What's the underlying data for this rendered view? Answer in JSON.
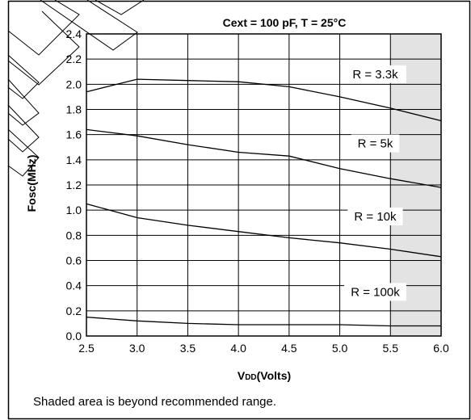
{
  "chart_data": {
    "type": "line",
    "title": "Cext = 100 pF, T = 25°C",
    "xlabel": "VDD(Volts)",
    "xlabel_parts": [
      "V",
      "DD",
      "(Volts)"
    ],
    "ylabel": "Fosc(MHz)",
    "xlim": [
      2.5,
      6.0
    ],
    "ylim": [
      0.0,
      2.4
    ],
    "x_ticks": [
      "2.5",
      "3.0",
      "3.5",
      "4.0",
      "4.5",
      "5.0",
      "5.5",
      "6.0"
    ],
    "y_ticks": [
      "0.0",
      "0.2",
      "0.4",
      "0.6",
      "0.8",
      "1.0",
      "1.2",
      "1.4",
      "1.6",
      "1.8",
      "2.0",
      "2.2",
      "2.4"
    ],
    "grid": true,
    "shaded_region": {
      "x": [
        5.5,
        6.0
      ],
      "color": "#e3e3e3"
    },
    "series": [
      {
        "name": "R = 3.3k",
        "x": [
          2.5,
          3.0,
          3.5,
          4.0,
          4.5,
          5.0,
          5.5,
          6.0
        ],
        "values": [
          1.94,
          2.04,
          2.03,
          2.02,
          1.98,
          1.9,
          1.81,
          1.71
        ]
      },
      {
        "name": "R = 5k",
        "x": [
          2.5,
          3.0,
          3.5,
          4.0,
          4.5,
          5.0,
          5.5,
          6.0
        ],
        "values": [
          1.64,
          1.59,
          1.52,
          1.46,
          1.43,
          1.33,
          1.25,
          1.18
        ]
      },
      {
        "name": "R = 10k",
        "x": [
          2.5,
          3.0,
          3.5,
          4.0,
          4.5,
          5.0,
          5.5,
          6.0
        ],
        "values": [
          1.05,
          0.94,
          0.88,
          0.83,
          0.78,
          0.74,
          0.69,
          0.63
        ]
      },
      {
        "name": "R = 100k",
        "x": [
          2.5,
          3.0,
          3.5,
          4.0,
          4.5,
          5.0,
          5.5,
          6.0
        ],
        "values": [
          0.15,
          0.12,
          0.1,
          0.09,
          0.09,
          0.09,
          0.08,
          0.08
        ]
      }
    ],
    "series_label_anchor": [
      {
        "x": 5.35,
        "y": 2.08
      },
      {
        "x": 5.35,
        "y": 1.53
      },
      {
        "x": 5.35,
        "y": 0.95
      },
      {
        "x": 5.35,
        "y": 0.35
      }
    ]
  },
  "note": "Shaded area is beyond recommended range."
}
